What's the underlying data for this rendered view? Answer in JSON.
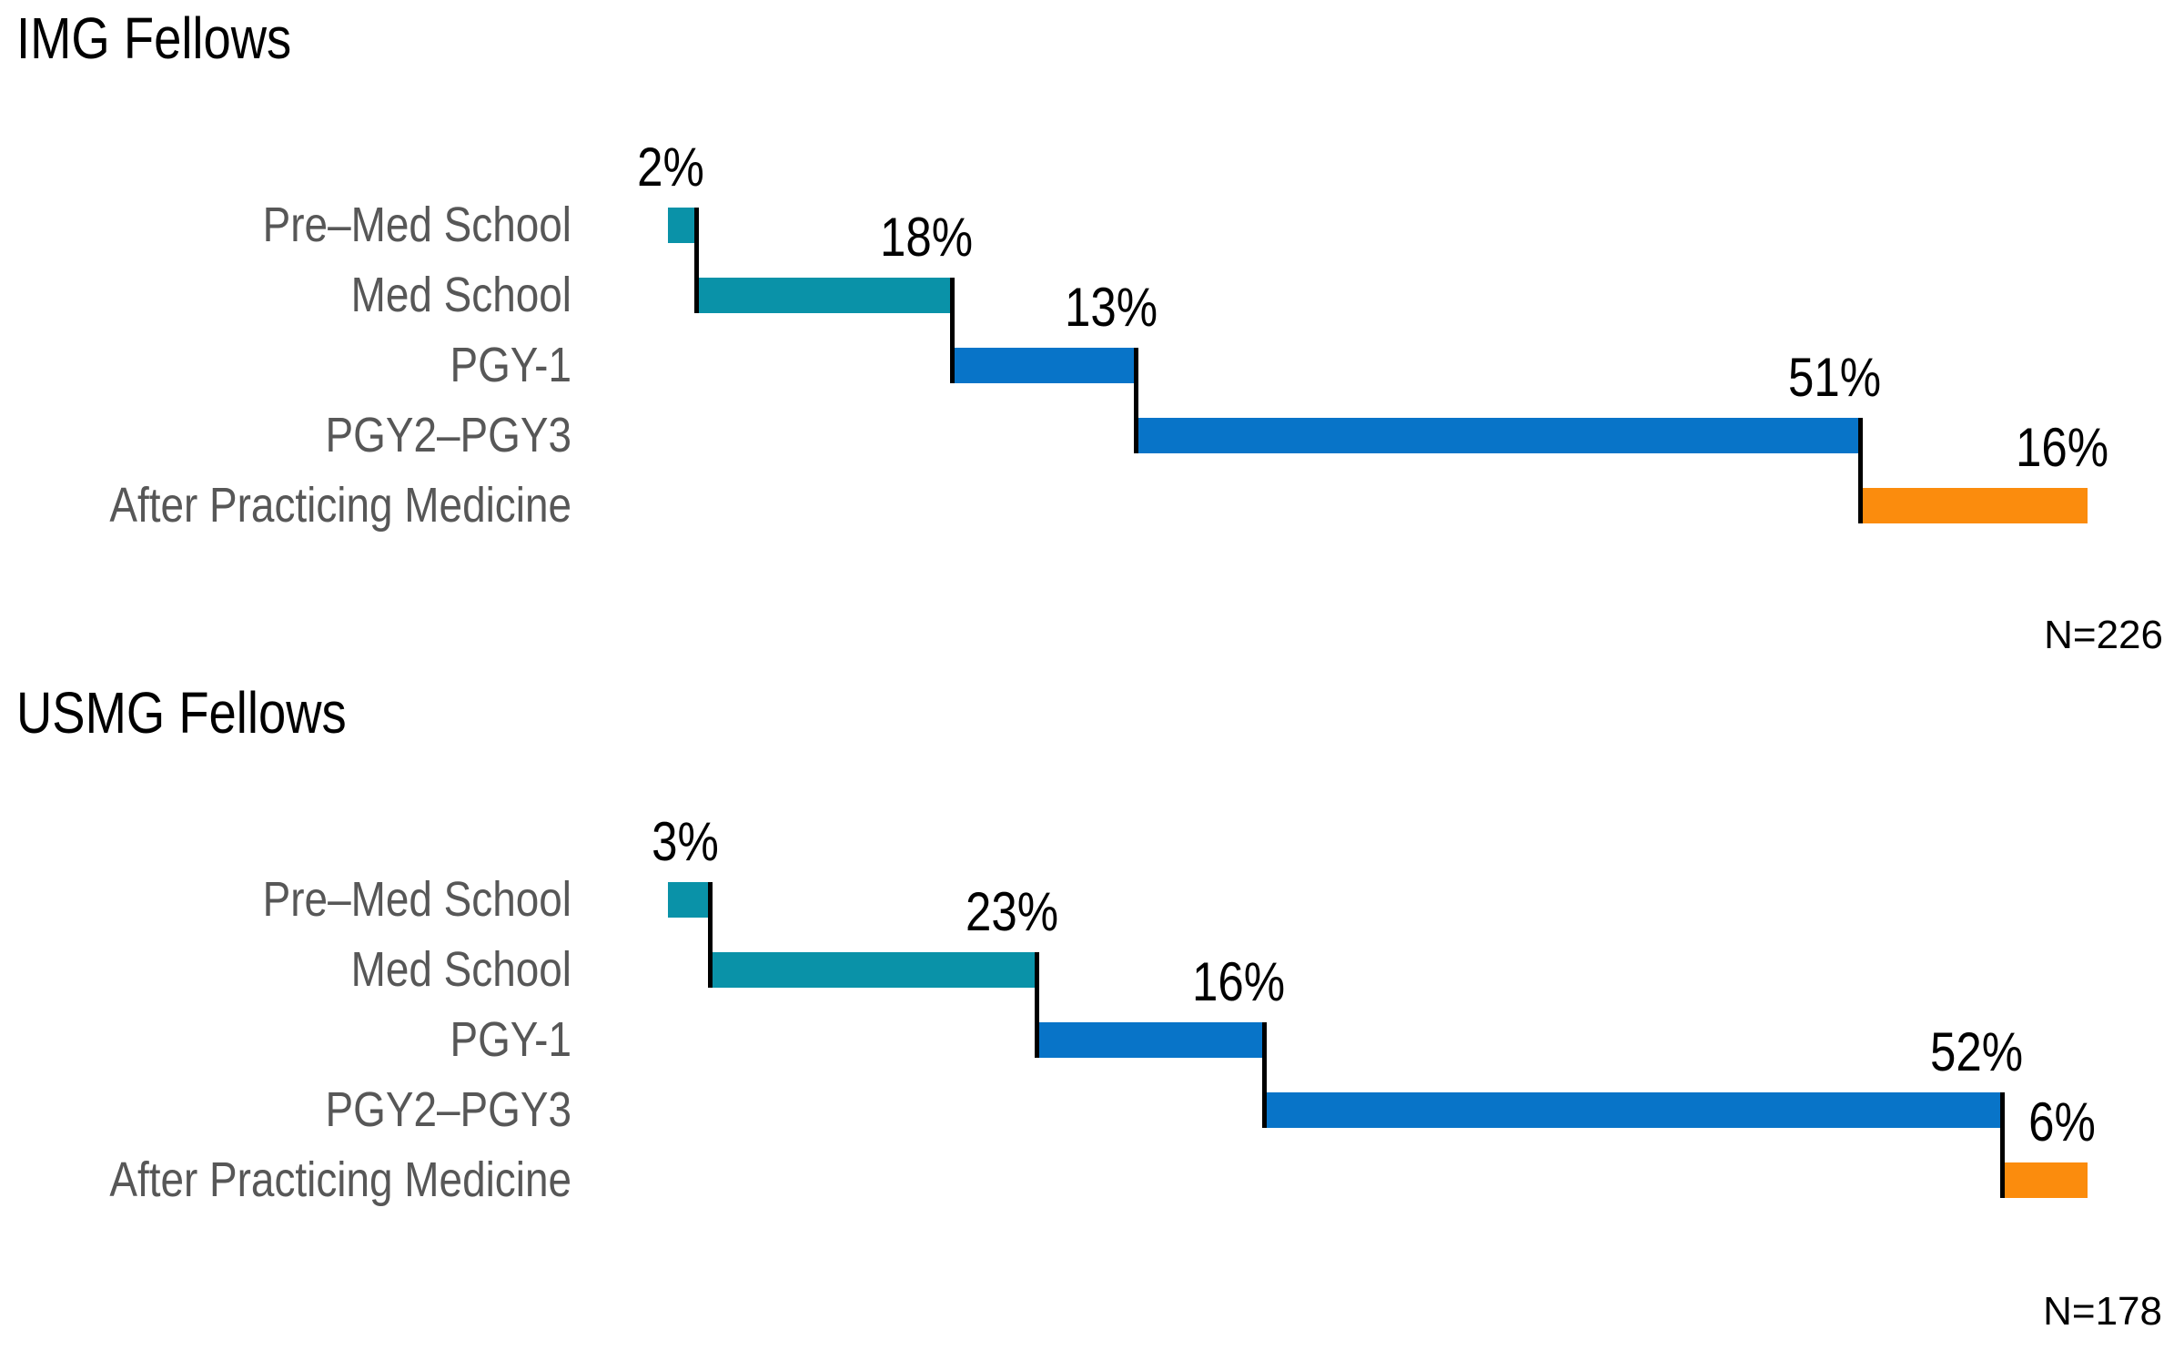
{
  "background": "#ffffff",
  "colors": {
    "school_phase": "#0A92A8",
    "residency_phase": "#0874C8",
    "practice_phase": "#FB8C0D",
    "connector": "#000000",
    "category_label": "#575757",
    "value_label": "#000000",
    "title": "#000000"
  },
  "chart_data": [
    {
      "type": "bar",
      "variant": "horizontal-waterfall",
      "title": "IMG Fellows",
      "sample_size_label": "N=226",
      "categories": [
        "Pre–Med School",
        "Med School",
        "PGY-1",
        "PGY2–PGY3",
        "After Practicing Medicine"
      ],
      "values": [
        2,
        18,
        13,
        51,
        16
      ],
      "value_labels": [
        "2%",
        "18%",
        "13%",
        "51%",
        "16%"
      ],
      "bar_colors": [
        "#0A92A8",
        "#0A92A8",
        "#0874C8",
        "#0874C8",
        "#FB8C0D"
      ],
      "xlim": [
        0,
        100
      ],
      "grid": false,
      "legend": false,
      "axes_shown": false
    },
    {
      "type": "bar",
      "variant": "horizontal-waterfall",
      "title": "USMG Fellows",
      "sample_size_label": "N=178",
      "categories": [
        "Pre–Med School",
        "Med School",
        "PGY-1",
        "PGY2–PGY3",
        "After Practicing Medicine"
      ],
      "values": [
        3,
        23,
        16,
        52,
        6
      ],
      "value_labels": [
        "3%",
        "23%",
        "16%",
        "52%",
        "6%"
      ],
      "bar_colors": [
        "#0A92A8",
        "#0A92A8",
        "#0874C8",
        "#0874C8",
        "#FB8C0D"
      ],
      "xlim": [
        0,
        100
      ],
      "grid": false,
      "legend": false,
      "axes_shown": false
    }
  ]
}
